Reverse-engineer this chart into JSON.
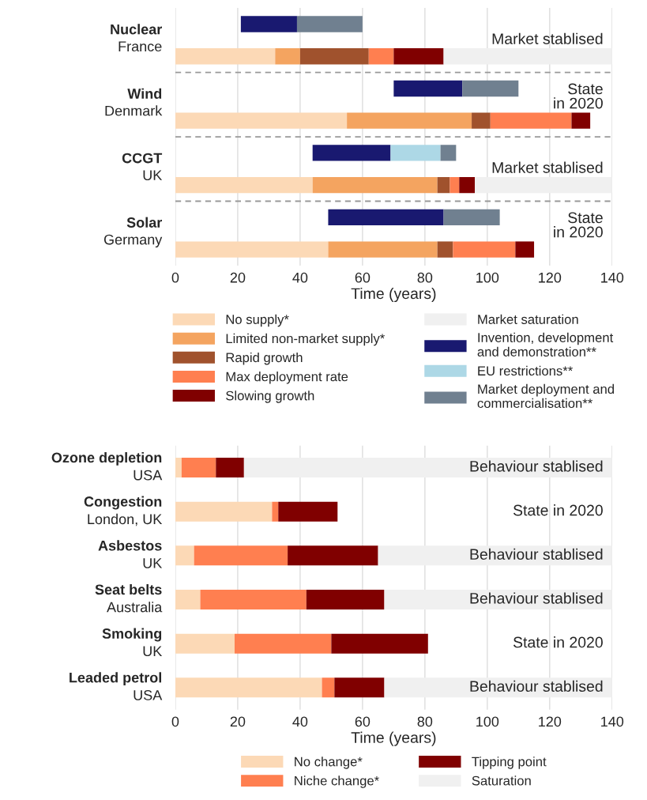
{
  "chart_data": [
    {
      "type": "bar",
      "orientation": "horizontal",
      "xlabel": "Time (years)",
      "categories": [
        "Nuclear",
        "France",
        "Wind",
        "Denmark",
        "CCGT",
        "UK",
        "Solar",
        "Germany"
      ],
      "series": [
        {
          "name": "No supply*",
          "color": "#fcd9b6",
          "values": [
            null,
            32,
            null,
            55,
            null,
            44,
            null,
            49
          ],
          "base": [
            null,
            0,
            null,
            0,
            null,
            0,
            null,
            0
          ]
        },
        {
          "name": "Limited non-market supply*",
          "color": "#f4a460",
          "values": [
            null,
            8,
            null,
            40,
            null,
            40,
            null,
            35
          ],
          "base": [
            null,
            32,
            null,
            55,
            null,
            44,
            null,
            49
          ]
        },
        {
          "name": "Rapid growth",
          "color": "#a0522d",
          "values": [
            null,
            22,
            null,
            6,
            null,
            4,
            null,
            5
          ],
          "base": [
            null,
            40,
            null,
            95,
            null,
            84,
            null,
            84
          ]
        },
        {
          "name": "Max deployment rate",
          "color": "#ff7f50",
          "values": [
            null,
            8,
            null,
            26,
            null,
            3,
            null,
            20
          ],
          "base": [
            null,
            62,
            null,
            101,
            null,
            88,
            null,
            89
          ]
        },
        {
          "name": "Slowing growth",
          "color": "#800000",
          "values": [
            null,
            16,
            null,
            6,
            null,
            5,
            null,
            6
          ],
          "base": [
            null,
            70,
            null,
            127,
            null,
            91,
            null,
            109
          ]
        },
        {
          "name": "Market saturation",
          "color": "#f0f0f0",
          "values": [
            null,
            54,
            null,
            null,
            null,
            44,
            null,
            null
          ],
          "base": [
            null,
            86,
            null,
            null,
            null,
            96,
            null,
            null
          ]
        },
        {
          "name": "Invention, development\nand demonstration**",
          "color": "#191970",
          "values": [
            18,
            null,
            22,
            null,
            25,
            null,
            37,
            null
          ],
          "base": [
            21,
            null,
            70,
            null,
            44,
            null,
            49,
            null
          ]
        },
        {
          "name": "EU restrictions**",
          "color": "#add8e6",
          "values": [
            null,
            null,
            null,
            null,
            16,
            null,
            null,
            null
          ],
          "base": [
            null,
            null,
            null,
            null,
            69,
            null,
            null,
            null
          ]
        },
        {
          "name": "Market deployment and\ncommercialisation**",
          "color": "#708090",
          "values": [
            21,
            null,
            18,
            null,
            5,
            null,
            18,
            null
          ],
          "base": [
            39,
            null,
            92,
            null,
            85,
            null,
            86,
            null
          ]
        }
      ],
      "xlim": [
        0,
        140
      ],
      "xticks": [
        0,
        20,
        40,
        60,
        80,
        100,
        120,
        140
      ],
      "grid": "x",
      "legend": "bottom",
      "annotations": [
        "Market stablised",
        "State\nin 2020",
        "Market stablised",
        "State\nin 2020"
      ]
    },
    {
      "type": "bar",
      "orientation": "horizontal",
      "stacked": true,
      "xlabel": "Time (years)",
      "categories": [
        "Ozone depletion\nUSA",
        "Congestion\nLondon, UK",
        "Asbestos\nUK",
        "Seat belts\nAustralia",
        "Smoking\nUK",
        "Leaded petrol\nUSA"
      ],
      "series": [
        {
          "name": "No change*",
          "color": "#fcd9b6",
          "values": [
            2,
            31,
            6,
            8,
            19,
            47
          ]
        },
        {
          "name": "Niche change*",
          "color": "#ff7f50",
          "values": [
            11,
            2,
            30,
            34,
            31,
            4
          ]
        },
        {
          "name": "Tipping point",
          "color": "#800000",
          "values": [
            9,
            19,
            29,
            25,
            31,
            16
          ]
        },
        {
          "name": "Saturation",
          "color": "#f0f0f0",
          "values": [
            118,
            null,
            75,
            73,
            null,
            73
          ]
        }
      ],
      "xlim": [
        0,
        140
      ],
      "xticks": [
        0,
        20,
        40,
        60,
        80,
        100,
        120,
        140
      ],
      "grid": "x",
      "legend": "bottom",
      "annotations": [
        "Behaviour stablised",
        "State in 2020",
        "Behaviour stablised",
        "Behaviour stablised",
        "State in 2020",
        "Behaviour stablised"
      ]
    }
  ]
}
